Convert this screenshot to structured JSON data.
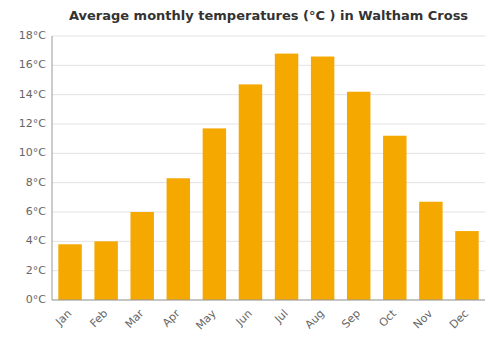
{
  "chart_data": {
    "type": "bar",
    "title": "Average monthly temperatures (°C ) in Waltham Cross",
    "categories": [
      "Jan",
      "Feb",
      "Mar",
      "Apr",
      "May",
      "Jun",
      "Jul",
      "Aug",
      "Sep",
      "Oct",
      "Nov",
      "Dec"
    ],
    "values": [
      3.8,
      4.0,
      6.0,
      8.3,
      11.7,
      14.7,
      16.8,
      16.6,
      14.2,
      11.2,
      6.7,
      4.7
    ],
    "color": "#F5A800",
    "ylim": [
      0,
      18
    ],
    "yticks": [
      {
        "value": 0,
        "label": "0°C"
      },
      {
        "value": 2,
        "label": "2°C"
      },
      {
        "value": 4,
        "label": "4°C"
      },
      {
        "value": 6,
        "label": "6°C"
      },
      {
        "value": 8,
        "label": "8°C"
      },
      {
        "value": 10,
        "label": "10°C"
      },
      {
        "value": 12,
        "label": "12°C"
      },
      {
        "value": 14,
        "label": "14°C"
      },
      {
        "value": 16,
        "label": "16°C"
      },
      {
        "value": 18,
        "label": "18°C"
      }
    ],
    "grid": true
  }
}
